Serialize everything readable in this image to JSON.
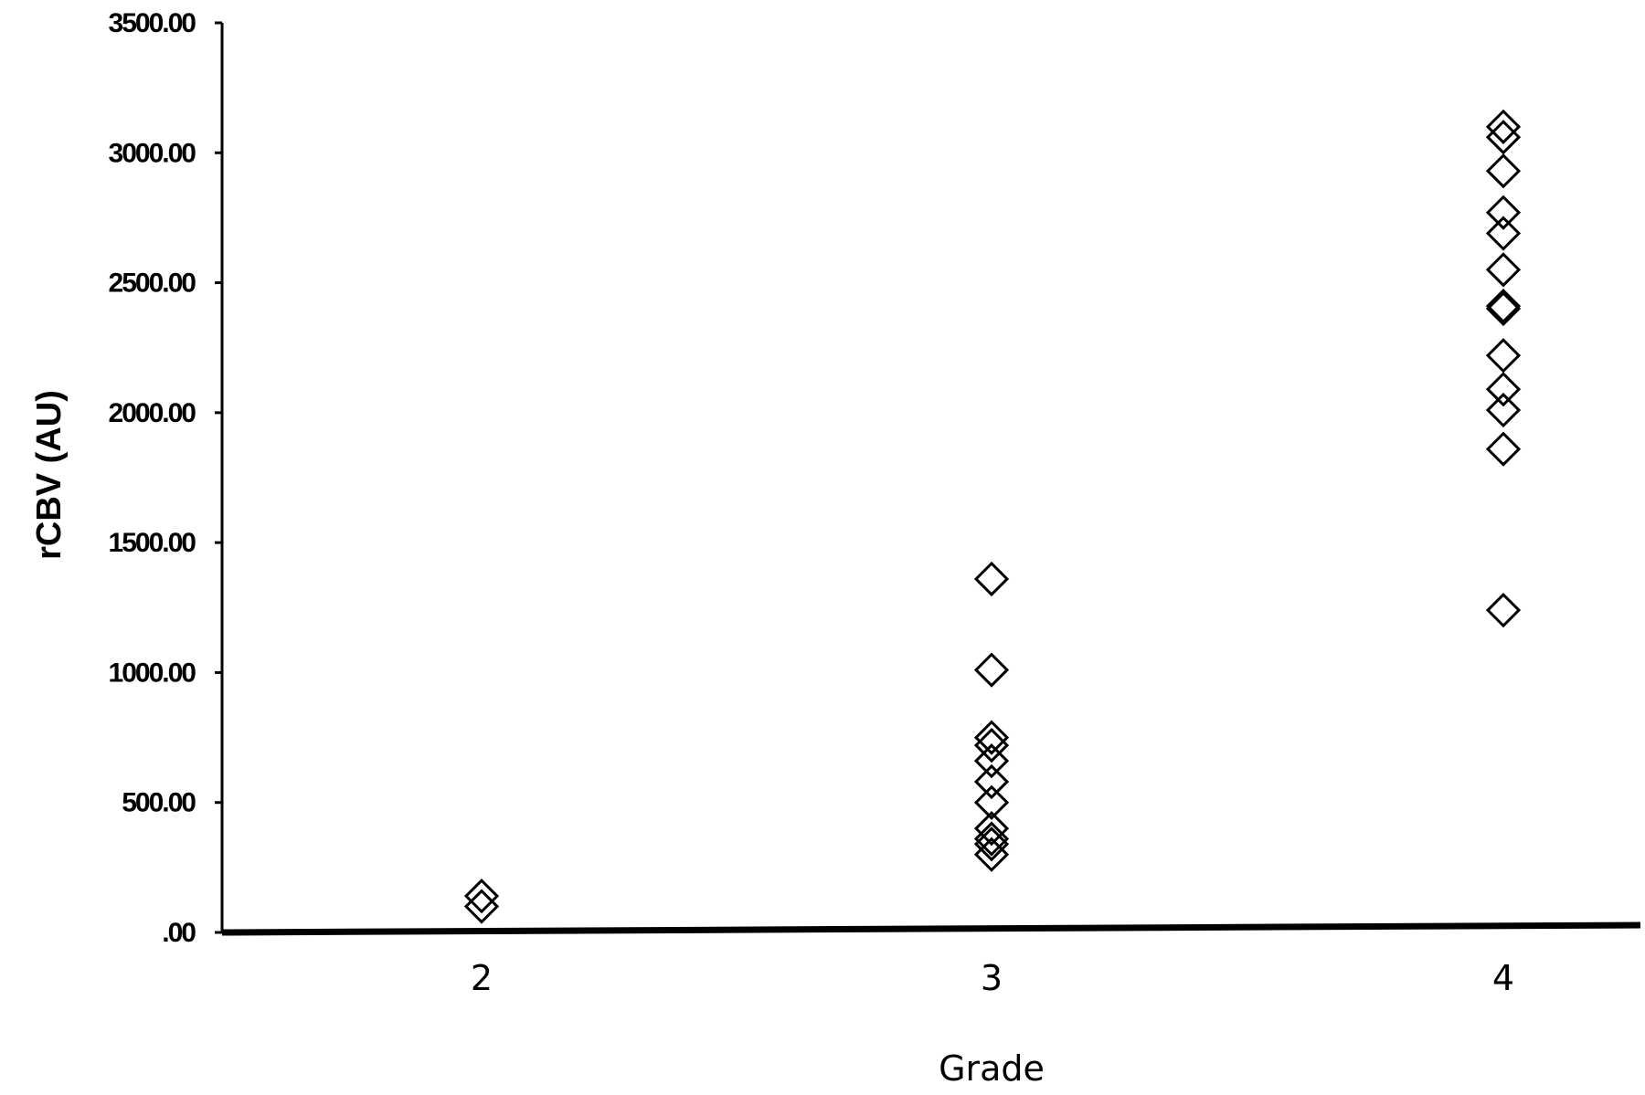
{
  "chart_data": {
    "type": "scatter",
    "title": "",
    "xlabel": "Grade",
    "ylabel": "rCBV (AU)",
    "categories": [
      "2",
      "3",
      "4"
    ],
    "ylim": [
      0,
      3500
    ],
    "yticks": [
      ".00",
      "500.00",
      "1000.00",
      "1500.00",
      "2000.00",
      "2500.00",
      "3000.00",
      "3500.00"
    ],
    "ytick_values": [
      0,
      500,
      1000,
      1500,
      2000,
      2500,
      3000,
      3500
    ],
    "grid": false,
    "legend": "none",
    "marker": "diamond-open",
    "series": [
      {
        "category": "2",
        "values": [
          100,
          140
        ]
      },
      {
        "category": "3",
        "values": [
          300,
          340,
          360,
          400,
          500,
          580,
          660,
          720,
          750,
          1010,
          1360
        ]
      },
      {
        "category": "4",
        "values": [
          1240,
          1860,
          2010,
          2090,
          2220,
          2400,
          2410,
          2550,
          2690,
          2770,
          2930,
          3060,
          3100
        ]
      }
    ]
  }
}
